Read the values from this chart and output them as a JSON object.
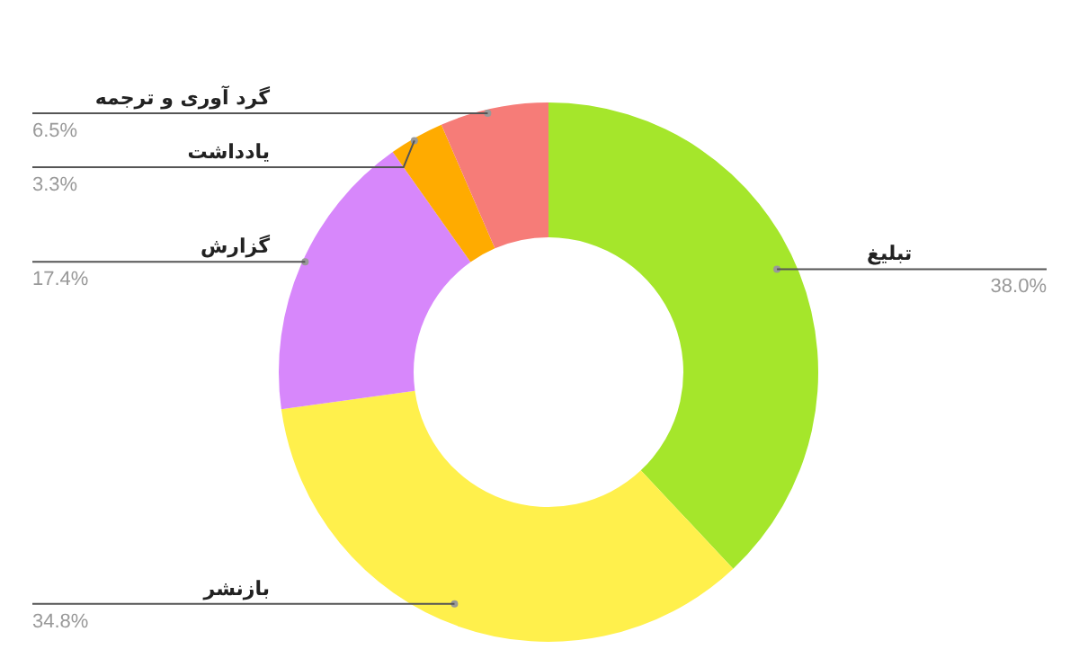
{
  "chart_data": {
    "type": "donut",
    "categories": [
      "تبلیغ",
      "بازنشر",
      "گزارش",
      "یادداشت",
      "گرد آوری و ترجمه"
    ],
    "values": [
      38.0,
      34.8,
      17.4,
      3.3,
      6.5
    ],
    "value_labels": [
      "38.0%",
      "34.8%",
      "17.4%",
      "3.3%",
      "6.5%"
    ],
    "colors": [
      "#a5e62b",
      "#fff04c",
      "#d787fb",
      "#ffab00",
      "#f67c78"
    ],
    "legend": false
  }
}
